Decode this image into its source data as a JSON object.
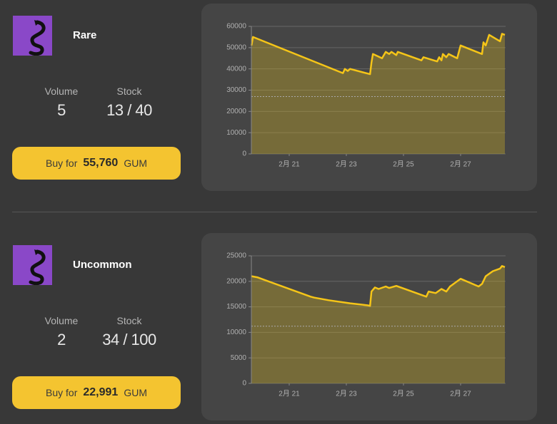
{
  "items": [
    {
      "rarity": "Rare",
      "volume_label": "Volume",
      "volume": "5",
      "stock_label": "Stock",
      "stock": "13 / 40",
      "buy_prefix": "Buy for",
      "price": "55,760",
      "currency": "GUM",
      "chart": {
        "type": "area",
        "x": [
          19.68,
          19.73,
          22.88,
          22.95,
          23.05,
          23.13,
          23.83,
          23.88,
          23.93,
          24.25,
          24.38,
          24.5,
          24.58,
          24.75,
          24.8,
          25.63,
          25.7,
          26.18,
          26.25,
          26.33,
          26.38,
          26.5,
          26.58,
          26.88,
          27.0,
          27.75,
          27.8,
          27.88,
          28.0,
          28.38,
          28.45,
          28.55
        ],
        "values": [
          51000,
          55000,
          38000,
          40000,
          39000,
          40000,
          37500,
          43000,
          47000,
          45000,
          48000,
          47000,
          48000,
          46500,
          48000,
          44000,
          45500,
          43500,
          45500,
          44000,
          47000,
          45500,
          47000,
          45000,
          51000,
          47000,
          52500,
          51000,
          56000,
          53000,
          56500,
          56000
        ],
        "xlim": [
          19.675,
          28.575
        ],
        "xticks": [
          {
            "value": 21,
            "label": "2月 21"
          },
          {
            "value": 23,
            "label": "2月 23"
          },
          {
            "value": 25,
            "label": "2月 25"
          },
          {
            "value": 27,
            "label": "2月 27"
          }
        ],
        "ylim": [
          0,
          60000
        ],
        "yticks": [
          0,
          10000,
          20000,
          30000,
          40000,
          50000,
          60000
        ],
        "reference_line": 27000,
        "color": "#f5c518"
      }
    },
    {
      "rarity": "Uncommon",
      "volume_label": "Volume",
      "volume": "2",
      "stock_label": "Stock",
      "stock": "34 / 100",
      "buy_prefix": "Buy for",
      "price": "22,991",
      "currency": "GUM",
      "chart": {
        "type": "area",
        "x": [
          19.68,
          19.88,
          21.75,
          21.88,
          22.38,
          23.13,
          23.75,
          23.83,
          23.88,
          24.0,
          24.13,
          24.38,
          24.5,
          24.75,
          25.8,
          25.88,
          26.13,
          26.33,
          26.5,
          26.63,
          27.0,
          27.63,
          27.75,
          27.88,
          28.13,
          28.38,
          28.45,
          28.55
        ],
        "values": [
          21000,
          20800,
          17000,
          16800,
          16300,
          15700,
          15300,
          15200,
          18000,
          18800,
          18500,
          19000,
          18700,
          19100,
          17000,
          18000,
          17700,
          18500,
          18000,
          19000,
          20500,
          19000,
          19500,
          21000,
          22000,
          22500,
          23000,
          22800
        ],
        "xlim": [
          19.675,
          28.575
        ],
        "xticks": [
          {
            "value": 21,
            "label": "2月 21"
          },
          {
            "value": 23,
            "label": "2月 23"
          },
          {
            "value": 25,
            "label": "2月 25"
          },
          {
            "value": 27,
            "label": "2月 27"
          }
        ],
        "ylim": [
          0,
          25000
        ],
        "yticks": [
          0,
          5000,
          10000,
          15000,
          20000,
          25000
        ],
        "reference_line": 11200,
        "color": "#f5c518"
      }
    }
  ]
}
